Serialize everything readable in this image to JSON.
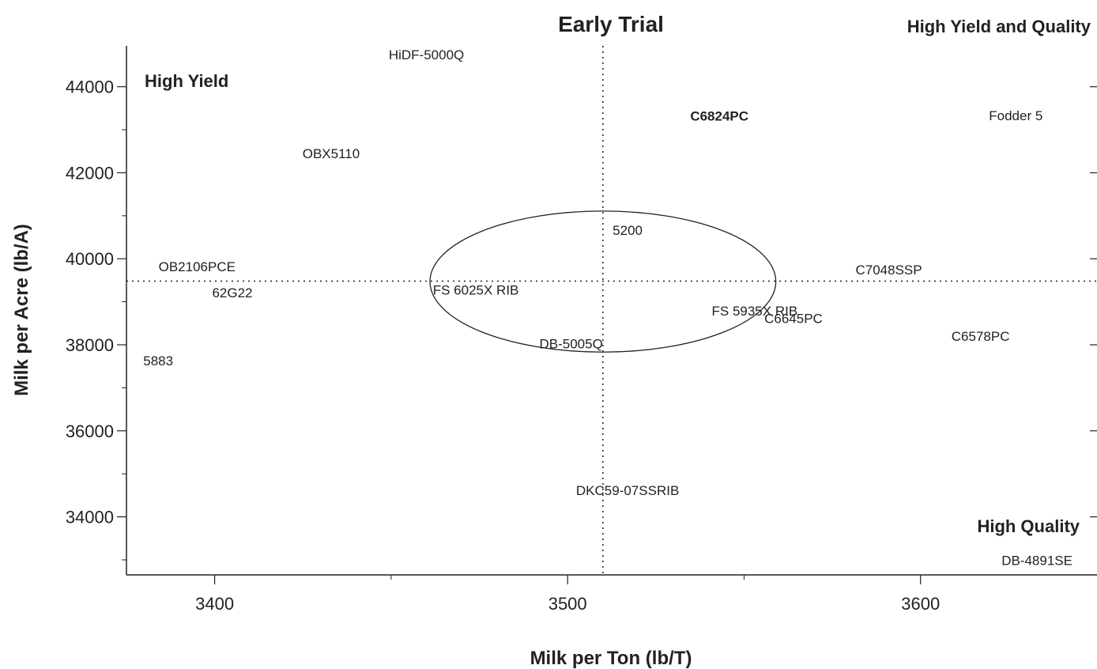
{
  "chart_data": {
    "type": "scatter",
    "title": "Early Trial",
    "xlabel": "Milk per Ton (lb/T)",
    "ylabel": "Milk per Acre (lb/A)",
    "xlim": [
      3375,
      3650
    ],
    "ylim": [
      32650,
      44950
    ],
    "xticks": [
      3400,
      3500,
      3600
    ],
    "yticks": [
      34000,
      36000,
      38000,
      40000,
      42000,
      44000
    ],
    "grid": false,
    "reference_lines": {
      "x": 3510,
      "y": 39480
    },
    "ellipse": {
      "cx": 3510,
      "cy": 39470,
      "rx": 49,
      "ry": 1640
    },
    "quadrant_labels": {
      "top_right": "High Yield and Quality",
      "top_left": "High Yield",
      "bottom_right": "High Quality"
    },
    "points": [
      {
        "label": "HiDF-5000Q",
        "x": 3460,
        "y": 44750,
        "bold": false
      },
      {
        "label": "C6824PC",
        "x": 3543,
        "y": 43320,
        "bold": true
      },
      {
        "label": "Fodder 5",
        "x": 3627,
        "y": 43330,
        "bold": false
      },
      {
        "label": "OBX5110",
        "x": 3433,
        "y": 42450,
        "bold": false
      },
      {
        "label": "5200",
        "x": 3517,
        "y": 40670,
        "bold": false
      },
      {
        "label": "OB2106PCE",
        "x": 3395,
        "y": 39820,
        "bold": false
      },
      {
        "label": "C7048SSP",
        "x": 3591,
        "y": 39750,
        "bold": false
      },
      {
        "label": "62G22",
        "x": 3405,
        "y": 39210,
        "bold": false
      },
      {
        "label": "FS 6025X RIB",
        "x": 3474,
        "y": 39280,
        "bold": false
      },
      {
        "label": "FS 5935X RIB",
        "x": 3553,
        "y": 38790,
        "bold": false
      },
      {
        "label": "C6645PC",
        "x": 3564,
        "y": 38620,
        "bold": false
      },
      {
        "label": "C6578PC",
        "x": 3617,
        "y": 38200,
        "bold": false
      },
      {
        "label": "DB-5005Q",
        "x": 3501,
        "y": 38030,
        "bold": false
      },
      {
        "label": "5883",
        "x": 3384,
        "y": 37630,
        "bold": false
      },
      {
        "label": "DKC59-07SSRIB",
        "x": 3517,
        "y": 34620,
        "bold": false
      },
      {
        "label": "DB-4891SE",
        "x": 3633,
        "y": 32990,
        "bold": false
      }
    ]
  }
}
